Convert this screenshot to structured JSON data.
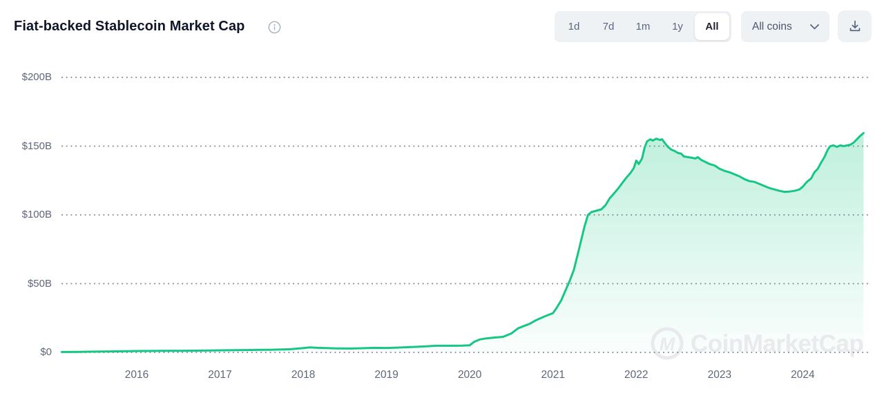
{
  "header": {
    "title": "Fiat-backed Stablecoin Market Cap",
    "time_ranges": [
      {
        "label": "1d",
        "selected": false
      },
      {
        "label": "7d",
        "selected": false
      },
      {
        "label": "1m",
        "selected": false
      },
      {
        "label": "1y",
        "selected": false
      },
      {
        "label": "All",
        "selected": true
      }
    ],
    "coins_filter": {
      "label": "All coins"
    }
  },
  "watermark": {
    "text": "CoinMarketCap"
  },
  "colors": {
    "line": "#16c784",
    "fill_top": "rgba(22,199,132,0.28)",
    "fill_bottom": "rgba(22,199,132,0.02)",
    "grid_dots": "#7d8699",
    "axis_text": "#5d6779",
    "title_text": "#0f1629",
    "control_bg": "#eff2f5",
    "control_text": "#58667e",
    "watermark": "#e9eaee"
  },
  "chart_data": {
    "type": "area",
    "title": "Fiat-backed Stablecoin Market Cap",
    "x_unit": "year (decimal)",
    "y_unit": "USD billions",
    "xlim": [
      2015.1,
      2024.75
    ],
    "ylim": [
      0,
      210
    ],
    "grid": "dotted horizontal gridlines at each y tick",
    "legend": "none",
    "y_ticks": [
      {
        "value": 0,
        "label": "$0"
      },
      {
        "value": 50,
        "label": "$50B"
      },
      {
        "value": 100,
        "label": "$100B"
      },
      {
        "value": 150,
        "label": "$150B"
      },
      {
        "value": 200,
        "label": "$200B"
      }
    ],
    "x_ticks": [
      {
        "value": 2016,
        "label": "2016"
      },
      {
        "value": 2017,
        "label": "2017"
      },
      {
        "value": 2018,
        "label": "2018"
      },
      {
        "value": 2019,
        "label": "2019"
      },
      {
        "value": 2020,
        "label": "2020"
      },
      {
        "value": 2021,
        "label": "2021"
      },
      {
        "value": 2022,
        "label": "2022"
      },
      {
        "value": 2023,
        "label": "2023"
      },
      {
        "value": 2024,
        "label": "2024"
      }
    ],
    "series": [
      {
        "name": "Fiat-backed stablecoin market cap",
        "points": [
          [
            2015.1,
            0.3
          ],
          [
            2015.3,
            0.4
          ],
          [
            2015.6,
            0.6
          ],
          [
            2015.9,
            0.9
          ],
          [
            2016.0,
            1.0
          ],
          [
            2016.3,
            1.1
          ],
          [
            2016.6,
            1.2
          ],
          [
            2016.9,
            1.4
          ],
          [
            2017.0,
            1.5
          ],
          [
            2017.3,
            1.7
          ],
          [
            2017.6,
            1.9
          ],
          [
            2017.85,
            2.3
          ],
          [
            2018.0,
            3.1
          ],
          [
            2018.08,
            3.6
          ],
          [
            2018.15,
            3.4
          ],
          [
            2018.25,
            3.2
          ],
          [
            2018.4,
            2.9
          ],
          [
            2018.55,
            2.8
          ],
          [
            2018.7,
            3.0
          ],
          [
            2018.85,
            3.3
          ],
          [
            2019.0,
            3.2
          ],
          [
            2019.15,
            3.5
          ],
          [
            2019.3,
            3.9
          ],
          [
            2019.45,
            4.3
          ],
          [
            2019.6,
            4.8
          ],
          [
            2019.75,
            4.8
          ],
          [
            2019.9,
            4.9
          ],
          [
            2020.0,
            5.2
          ],
          [
            2020.05,
            7.6
          ],
          [
            2020.12,
            9.4
          ],
          [
            2020.2,
            10.2
          ],
          [
            2020.3,
            10.8
          ],
          [
            2020.4,
            11.3
          ],
          [
            2020.5,
            13.8
          ],
          [
            2020.58,
            17.5
          ],
          [
            2020.65,
            19.2
          ],
          [
            2020.72,
            20.8
          ],
          [
            2020.8,
            23.5
          ],
          [
            2020.9,
            26.2
          ],
          [
            2021.0,
            28.6
          ],
          [
            2021.05,
            33
          ],
          [
            2021.1,
            38
          ],
          [
            2021.15,
            45
          ],
          [
            2021.2,
            52
          ],
          [
            2021.25,
            60
          ],
          [
            2021.3,
            72
          ],
          [
            2021.34,
            82
          ],
          [
            2021.38,
            92
          ],
          [
            2021.42,
            100
          ],
          [
            2021.46,
            102
          ],
          [
            2021.52,
            103
          ],
          [
            2021.58,
            104
          ],
          [
            2021.63,
            107
          ],
          [
            2021.68,
            112
          ],
          [
            2021.73,
            115.5
          ],
          [
            2021.78,
            119
          ],
          [
            2021.83,
            123
          ],
          [
            2021.88,
            127
          ],
          [
            2021.93,
            130.5
          ],
          [
            2021.97,
            134
          ],
          [
            2022.0,
            139.5
          ],
          [
            2022.03,
            137
          ],
          [
            2022.07,
            141
          ],
          [
            2022.1,
            149
          ],
          [
            2022.13,
            153.5
          ],
          [
            2022.17,
            155
          ],
          [
            2022.2,
            154
          ],
          [
            2022.24,
            155.5
          ],
          [
            2022.28,
            154.5
          ],
          [
            2022.31,
            155
          ],
          [
            2022.34,
            152.5
          ],
          [
            2022.38,
            149.5
          ],
          [
            2022.42,
            147.5
          ],
          [
            2022.46,
            146.5
          ],
          [
            2022.5,
            145
          ],
          [
            2022.54,
            144.5
          ],
          [
            2022.57,
            142.5
          ],
          [
            2022.62,
            142
          ],
          [
            2022.67,
            141.5
          ],
          [
            2022.71,
            141
          ],
          [
            2022.74,
            142
          ],
          [
            2022.78,
            140
          ],
          [
            2022.83,
            138.5
          ],
          [
            2022.88,
            137
          ],
          [
            2022.94,
            136
          ],
          [
            2023.0,
            133.5
          ],
          [
            2023.06,
            132
          ],
          [
            2023.12,
            131
          ],
          [
            2023.18,
            129.5
          ],
          [
            2023.24,
            128
          ],
          [
            2023.3,
            126
          ],
          [
            2023.36,
            124.5
          ],
          [
            2023.42,
            124
          ],
          [
            2023.48,
            122.5
          ],
          [
            2023.54,
            121
          ],
          [
            2023.6,
            119.5
          ],
          [
            2023.66,
            118.5
          ],
          [
            2023.72,
            117.5
          ],
          [
            2023.78,
            116.8
          ],
          [
            2023.84,
            117
          ],
          [
            2023.9,
            117.5
          ],
          [
            2023.96,
            118.5
          ],
          [
            2024.0,
            120.5
          ],
          [
            2024.05,
            124
          ],
          [
            2024.1,
            126.5
          ],
          [
            2024.14,
            131
          ],
          [
            2024.18,
            133.5
          ],
          [
            2024.22,
            138
          ],
          [
            2024.26,
            142
          ],
          [
            2024.3,
            147.5
          ],
          [
            2024.33,
            150
          ],
          [
            2024.37,
            150.5
          ],
          [
            2024.41,
            149.5
          ],
          [
            2024.45,
            150.5
          ],
          [
            2024.49,
            150
          ],
          [
            2024.53,
            150.5
          ],
          [
            2024.57,
            151
          ],
          [
            2024.61,
            152.5
          ],
          [
            2024.65,
            155
          ],
          [
            2024.69,
            157.5
          ],
          [
            2024.73,
            159.5
          ]
        ]
      }
    ]
  }
}
